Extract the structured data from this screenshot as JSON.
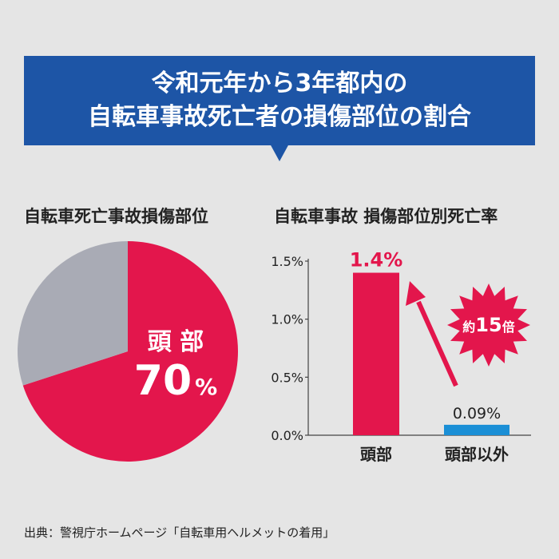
{
  "banner": {
    "line1": "令和元年から3年都内の",
    "line2": "自転車事故死亡者の損傷部位の割合"
  },
  "source": "出典：警視庁ホームページ「自転車用ヘルメットの着用」",
  "colors": {
    "accent": "#e3164c",
    "blue": "#1d55a6",
    "bar_other": "#1b8fd6",
    "pie_other": "#a9abb5"
  },
  "chart_data": [
    {
      "type": "pie",
      "title": "自転車死亡事故損傷部位",
      "slices": [
        {
          "name": "頭 部",
          "value": 70,
          "label_value": "70",
          "label_unit": "%"
        },
        {
          "name": "",
          "value": 30
        }
      ]
    },
    {
      "type": "bar",
      "title": "自転車事故 損傷部位別死亡率",
      "categories": [
        "頭部",
        "頭部以外"
      ],
      "values": [
        1.4,
        0.09
      ],
      "data_labels": [
        "1.4%",
        "0.09%"
      ],
      "ylim": [
        0,
        1.5
      ],
      "yticks": [
        "0.0%",
        "0.5%",
        "1.0%",
        "1.5%"
      ],
      "ytick_values": [
        0,
        0.5,
        1.0,
        1.5
      ],
      "annotation": {
        "prefix": "約",
        "number": "15",
        "suffix": "倍"
      }
    }
  ]
}
